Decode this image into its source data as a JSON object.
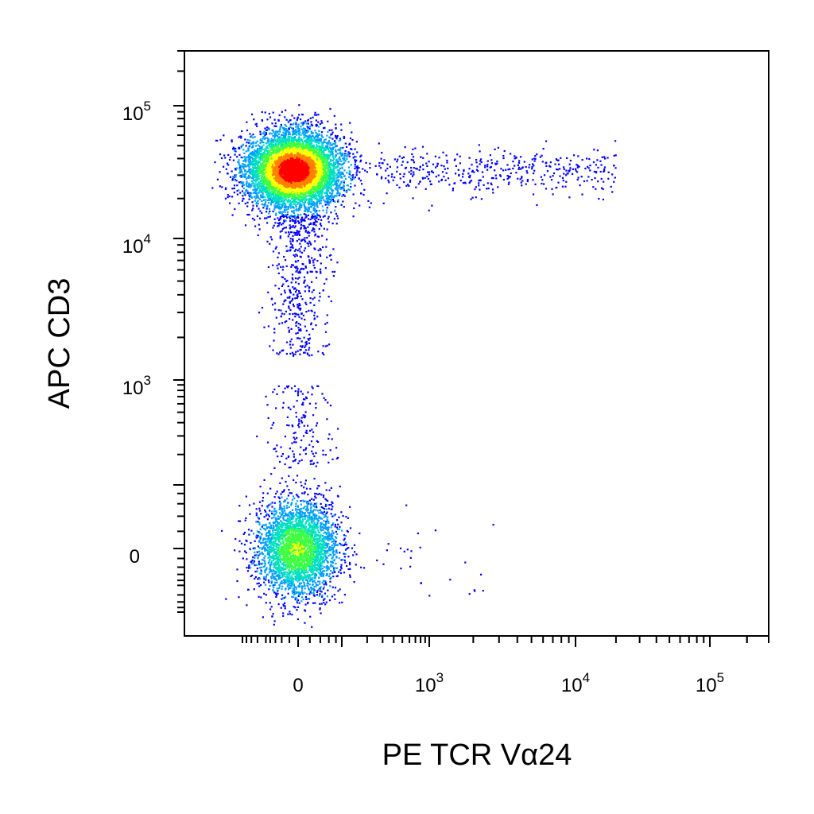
{
  "chart_data": {
    "type": "scatter",
    "plot_style": "density (pseudocolor) dot plot",
    "xlabel": "PE  TCR Vα24",
    "ylabel": "APC  CD3",
    "x_scale": "biexponential (logicle)",
    "y_scale": "biexponential (logicle)",
    "x_ticks": [
      {
        "value": 0,
        "label": "0",
        "exp": ""
      },
      {
        "value": 1000,
        "label": "10",
        "exp": "3"
      },
      {
        "value": 10000,
        "label": "10",
        "exp": "4"
      },
      {
        "value": 100000,
        "label": "10",
        "exp": "5"
      }
    ],
    "y_ticks": [
      {
        "value": 0,
        "label": "0",
        "exp": ""
      },
      {
        "value": 1000,
        "label": "10",
        "exp": "3"
      },
      {
        "value": 10000,
        "label": "10",
        "exp": "4"
      },
      {
        "value": 100000,
        "label": "10",
        "exp": "5"
      }
    ],
    "density_colors": [
      "#0000ff",
      "#00a0ff",
      "#00e0c0",
      "#40ff40",
      "#ffff00",
      "#ff8000",
      "#ff0000"
    ],
    "populations": [
      {
        "name": "CD3+ TCR Vα24−",
        "x_center": 0,
        "y_center": 33000,
        "relative_size": "largest",
        "peak_density": "high"
      },
      {
        "name": "CD3− TCR Vα24−",
        "x_center": 0,
        "y_center": 0,
        "relative_size": "large",
        "peak_density": "medium"
      },
      {
        "name": "CD3+ TCR Vα24+",
        "x_range": [
          300,
          20000
        ],
        "y_center": 33000,
        "relative_size": "small",
        "peak_density": "low"
      },
      {
        "name": "CD3 intermediate tail",
        "x_center": 0,
        "y_range": [
          1500,
          15000
        ],
        "relative_size": "small",
        "peak_density": "low"
      }
    ],
    "grid": false,
    "legend": "none"
  }
}
